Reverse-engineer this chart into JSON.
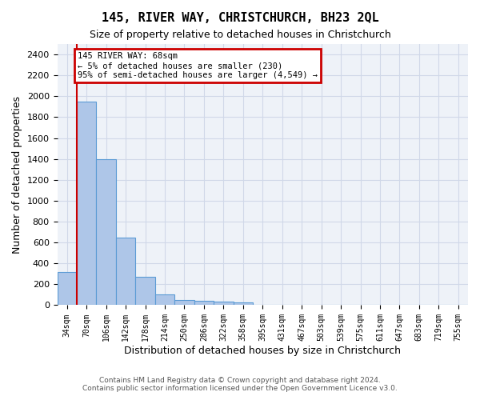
{
  "title": "145, RIVER WAY, CHRISTCHURCH, BH23 2QL",
  "subtitle": "Size of property relative to detached houses in Christchurch",
  "xlabel": "Distribution of detached houses by size in Christchurch",
  "ylabel": "Number of detached properties",
  "footer_line1": "Contains HM Land Registry data © Crown copyright and database right 2024.",
  "footer_line2": "Contains public sector information licensed under the Open Government Licence v3.0.",
  "bin_labels": [
    "34sqm",
    "70sqm",
    "106sqm",
    "142sqm",
    "178sqm",
    "214sqm",
    "250sqm",
    "286sqm",
    "322sqm",
    "358sqm",
    "395sqm",
    "431sqm",
    "467sqm",
    "503sqm",
    "539sqm",
    "575sqm",
    "611sqm",
    "647sqm",
    "683sqm",
    "719sqm",
    "755sqm"
  ],
  "bar_heights": [
    320,
    1950,
    1400,
    650,
    275,
    105,
    50,
    40,
    35,
    25,
    0,
    0,
    0,
    0,
    0,
    0,
    0,
    0,
    0,
    0,
    0
  ],
  "bar_color": "#aec6e8",
  "bar_edge_color": "#5b9bd5",
  "grid_color": "#d0d8e8",
  "background_color": "#eef2f8",
  "red_line_x": 0.5,
  "annotation_text": "145 RIVER WAY: 68sqm\n← 5% of detached houses are smaller (230)\n95% of semi-detached houses are larger (4,549) →",
  "annotation_box_color": "#cc0000",
  "ylim": [
    0,
    2500
  ],
  "yticks": [
    0,
    200,
    400,
    600,
    800,
    1000,
    1200,
    1400,
    1600,
    1800,
    2000,
    2200,
    2400
  ]
}
